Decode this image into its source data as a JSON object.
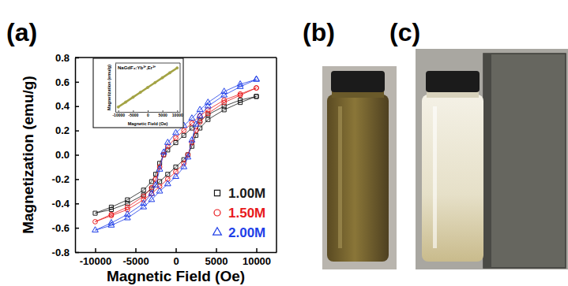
{
  "panel_labels": [
    "(a)",
    "(b)",
    "(c)"
  ],
  "chart_data": [
    {
      "type": "line",
      "x_label": "Magnetic Field (Oe)",
      "y_label": "Magnetization (emu/g)",
      "x": [
        10000,
        8000,
        6000,
        4000,
        3000,
        2000,
        1000,
        0,
        -1000,
        -1500,
        -2000,
        -2500,
        -3000,
        -4000,
        -6000,
        -8000,
        -10000,
        -8000,
        -6000,
        -4000,
        -3000,
        -2000,
        -1000,
        0,
        1000,
        1500,
        2000,
        2500,
        3000,
        4000,
        6000,
        8000,
        10000
      ],
      "series": [
        {
          "name": "1.00M",
          "color": "#1a1a1a",
          "marker": "square",
          "line_style": "solid",
          "values": [
            0.48,
            0.45,
            0.4,
            0.33,
            0.28,
            0.22,
            0.16,
            0.1,
            0.04,
            0.0,
            -0.07,
            -0.16,
            -0.22,
            -0.29,
            -0.37,
            -0.43,
            -0.48,
            -0.45,
            -0.4,
            -0.33,
            -0.28,
            -0.22,
            -0.16,
            -0.1,
            -0.04,
            0.0,
            0.07,
            0.16,
            0.22,
            0.29,
            0.37,
            0.43,
            0.48
          ]
        },
        {
          "name": "1.50M",
          "color": "#e8191c",
          "marker": "circle",
          "line_style": "solid",
          "values": [
            0.55,
            0.5,
            0.45,
            0.37,
            0.32,
            0.26,
            0.2,
            0.14,
            0.07,
            0.0,
            -0.1,
            -0.2,
            -0.27,
            -0.34,
            -0.43,
            -0.49,
            -0.55,
            -0.5,
            -0.45,
            -0.37,
            -0.32,
            -0.26,
            -0.2,
            -0.14,
            -0.07,
            0.0,
            0.1,
            0.2,
            0.27,
            0.34,
            0.43,
            0.49,
            0.55
          ]
        },
        {
          "name": "2.00M",
          "color": "#1f3fe8",
          "marker": "triangle",
          "line_style": "solid",
          "values": [
            0.62,
            0.58,
            0.52,
            0.43,
            0.37,
            0.3,
            0.24,
            0.18,
            0.1,
            0.02,
            -0.12,
            -0.25,
            -0.32,
            -0.4,
            -0.49,
            -0.56,
            -0.62,
            -0.58,
            -0.52,
            -0.43,
            -0.37,
            -0.3,
            -0.24,
            -0.18,
            -0.1,
            -0.02,
            0.12,
            0.25,
            0.32,
            0.4,
            0.49,
            0.56,
            0.62
          ]
        }
      ],
      "xlim": [
        -12500,
        12500
      ],
      "xticks": [
        -10000,
        -5000,
        0,
        5000,
        10000
      ],
      "ylim": [
        -0.8,
        0.8
      ],
      "yticks": [
        -0.8,
        -0.6,
        -0.4,
        -0.2,
        {
          "value": 0,
          "label": "0.0"
        },
        0.2,
        0.4,
        0.6,
        0.8
      ],
      "grid": false,
      "legend": "lower right"
    },
    {
      "type": "line",
      "title": "NaGdF₄:Yb³⁺,Er³⁺",
      "x_label": "Magnetic Field (Oe)",
      "y_label": "Magnetization (emu/g)",
      "x": [
        -10000,
        -7500,
        -5000,
        -2500,
        0,
        2500,
        5000,
        7500,
        10000
      ],
      "values": [
        -0.8,
        -0.6,
        -0.4,
        -0.2,
        0,
        0.2,
        0.4,
        0.6,
        0.8
      ],
      "color": "#a3a344",
      "marker": "circle",
      "line_style": "solid",
      "xlim": [
        -11000,
        11000
      ],
      "xticks": [
        -10000,
        -5000,
        0,
        5000,
        10000
      ],
      "ylim": [
        -1.0,
        1.0
      ],
      "grid": false,
      "tick_labels": "x"
    }
  ]
}
